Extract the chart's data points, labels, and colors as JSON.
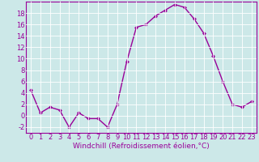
{
  "x": [
    0,
    1,
    2,
    3,
    4,
    5,
    6,
    7,
    8,
    9,
    10,
    11,
    12,
    13,
    14,
    15,
    16,
    17,
    18,
    19,
    20,
    21,
    22,
    23
  ],
  "y": [
    4.5,
    0.5,
    1.5,
    1.0,
    -2.0,
    0.5,
    -0.5,
    -0.5,
    -2.0,
    2.0,
    9.5,
    15.5,
    16.0,
    17.5,
    18.5,
    19.5,
    19.0,
    17.0,
    14.5,
    10.5,
    6.0,
    2.0,
    1.5,
    2.5
  ],
  "line_color": "#990099",
  "marker": "D",
  "markersize": 2.0,
  "linewidth": 1.0,
  "xlabel": "Windchill (Refroidissement éolien,°C)",
  "xlim": [
    -0.5,
    23.5
  ],
  "ylim": [
    -3,
    20
  ],
  "yticks": [
    -2,
    0,
    2,
    4,
    6,
    8,
    10,
    12,
    14,
    16,
    18
  ],
  "xticks": [
    0,
    1,
    2,
    3,
    4,
    5,
    6,
    7,
    8,
    9,
    10,
    11,
    12,
    13,
    14,
    15,
    16,
    17,
    18,
    19,
    20,
    21,
    22,
    23
  ],
  "bg_color": "#cce8e8",
  "grid_color": "#ffffff",
  "tick_color": "#990099",
  "label_color": "#990099",
  "spine_color": "#990099",
  "xlabel_fontsize": 6.5,
  "tick_fontsize": 6.0
}
